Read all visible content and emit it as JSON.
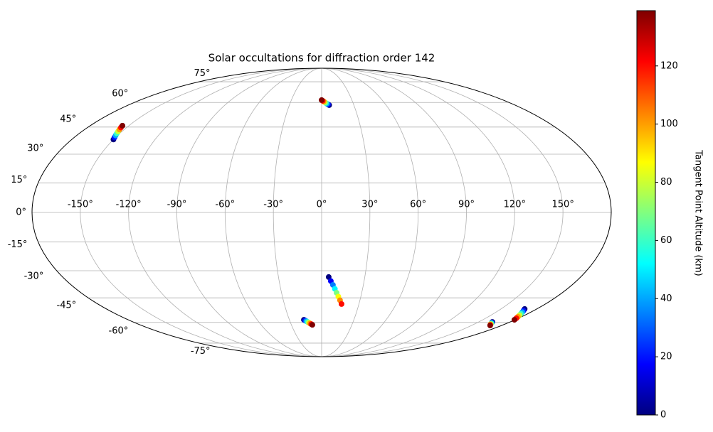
{
  "chart_data": {
    "type": "scatter",
    "projection": "mollweide",
    "colormap": "jet",
    "title": "Solar occultations for diffraction order 142",
    "colorbar_label": "Tangent Point Altitude (km)",
    "grid": true,
    "xticks": [
      {
        "value": -150,
        "label": "-150°"
      },
      {
        "value": -120,
        "label": "-120°"
      },
      {
        "value": -90,
        "label": "-90°"
      },
      {
        "value": -60,
        "label": "-60°"
      },
      {
        "value": -30,
        "label": "-30°"
      },
      {
        "value": 0,
        "label": "0°"
      },
      {
        "value": 30,
        "label": "30°"
      },
      {
        "value": 60,
        "label": "60°"
      },
      {
        "value": 90,
        "label": "90°"
      },
      {
        "value": 120,
        "label": "120°"
      },
      {
        "value": 150,
        "label": "150°"
      }
    ],
    "yticks": [
      {
        "value": -75,
        "label": "-75°"
      },
      {
        "value": -60,
        "label": "-60°"
      },
      {
        "value": -45,
        "label": "-45°"
      },
      {
        "value": -30,
        "label": "-30°"
      },
      {
        "value": -15,
        "label": "-15°"
      },
      {
        "value": 0,
        "label": "0°"
      },
      {
        "value": 15,
        "label": "15°"
      },
      {
        "value": 30,
        "label": "30°"
      },
      {
        "value": 45,
        "label": "45°"
      },
      {
        "value": 60,
        "label": "60°"
      },
      {
        "value": 75,
        "label": "75°"
      }
    ],
    "clim": [
      0,
      139
    ],
    "cticks": [
      0,
      20,
      40,
      60,
      80,
      100,
      120
    ],
    "x": [
      -150,
      -150.7,
      -151.4,
      -152.1,
      -152.9,
      -153.6,
      -154.3,
      -155,
      7,
      6,
      5,
      4,
      3,
      2,
      1,
      0,
      4.9,
      6.5,
      8.1,
      9.7,
      11.2,
      12.8,
      14.4,
      16.0,
      -16.5,
      -15.5,
      -14.5,
      -13.4,
      -12.3,
      -11.3,
      -10.2,
      -9.2,
      163,
      164,
      165,
      166,
      167,
      168.5,
      169.9,
      171.3,
      172.6,
      174,
      175.3,
      176.7,
      178,
      179.4
    ],
    "y": [
      38,
      39.1,
      40.2,
      41.3,
      42.5,
      43.6,
      44.7,
      45.8,
      58.3,
      58.8,
      59.2,
      59.7,
      60.2,
      60.7,
      61.1,
      61.6,
      -33.4,
      -35.6,
      -37.7,
      -39.9,
      -42.1,
      -44.3,
      -46.4,
      -48.6,
      -58.3,
      -58.8,
      -59.2,
      -59.7,
      -60.2,
      -60.7,
      -61.1,
      -61.6,
      -59.7,
      -60.2,
      -60.6,
      -61.1,
      -61.5,
      -62,
      -51.6,
      -52.6,
      -53.5,
      -54.5,
      -55.4,
      -56.4,
      -57.3,
      -58.3
    ],
    "values": [
      0,
      20,
      40,
      60,
      80,
      100,
      120,
      139,
      0,
      20,
      40,
      60,
      80,
      100,
      120,
      139,
      0,
      17,
      34,
      51,
      69,
      86,
      103,
      120,
      0,
      20,
      40,
      60,
      80,
      100,
      120,
      139,
      0,
      28,
      56,
      83,
      111,
      139,
      0,
      20,
      40,
      60,
      80,
      100,
      120,
      139
    ]
  }
}
